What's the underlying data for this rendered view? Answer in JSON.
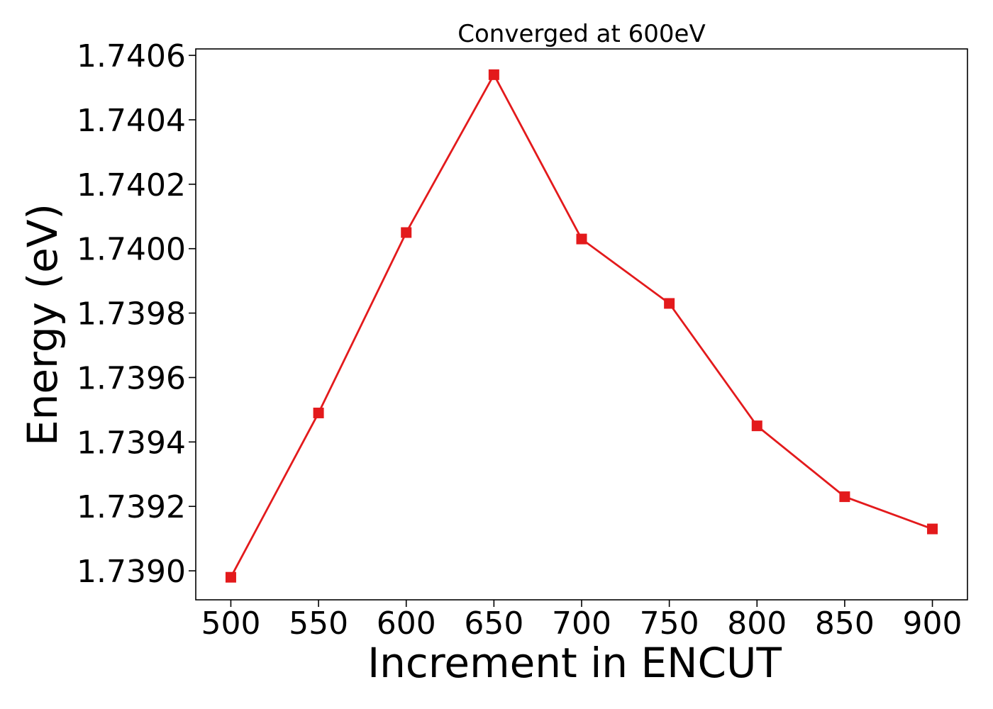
{
  "chart_data": {
    "type": "line",
    "title": "Converged at 600eV",
    "xlabel": "Increment in ENCUT",
    "ylabel": "Energy (eV)",
    "x": [
      500,
      550,
      600,
      650,
      700,
      750,
      800,
      850,
      900
    ],
    "xticks": [
      "500",
      "550",
      "600",
      "650",
      "700",
      "750",
      "800",
      "850",
      "900"
    ],
    "yticks": [
      "1.7390",
      "1.7392",
      "1.7394",
      "1.7396",
      "1.7398",
      "1.7400",
      "1.7402",
      "1.7404",
      "1.7406"
    ],
    "xlim": [
      480,
      920
    ],
    "ylim": [
      1.73891,
      1.74062
    ],
    "grid": false,
    "series": [
      {
        "values": [
          1.73898,
          1.73949,
          1.74005,
          1.74054,
          1.74003,
          1.73983,
          1.73945,
          1.73923,
          1.73913
        ],
        "color": "#e31a1c",
        "marker": "square"
      }
    ]
  }
}
